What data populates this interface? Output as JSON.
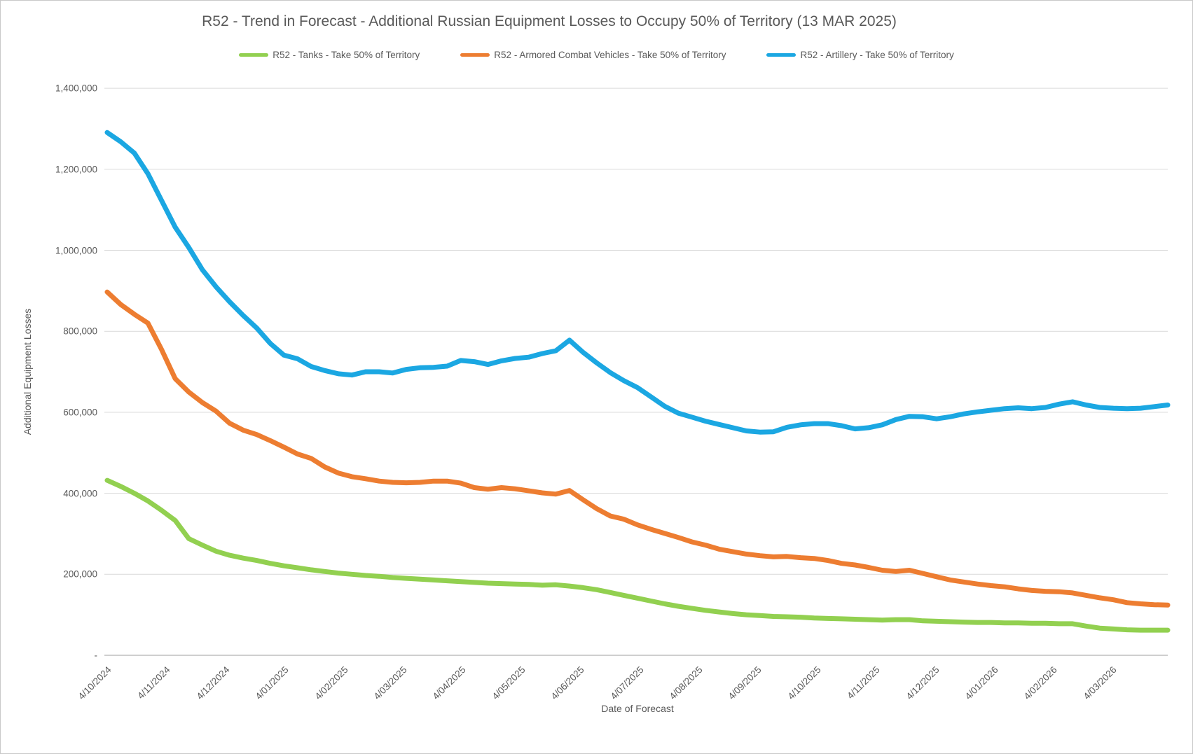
{
  "window": {
    "background": "#ffffff",
    "border_color": "#c9c9c9"
  },
  "title": "R52 - Trend in Forecast - Additional Russian Equipment Losses to Occupy 50% of Territory (13 MAR 2025)",
  "colors": {
    "tanks": "#92d050",
    "acv": "#ed7d31",
    "artillery": "#1ba7e2",
    "text": "#595959",
    "gridline": "#d9d9d9",
    "axis_line": "#bfbfbf"
  },
  "chart_data": {
    "type": "line",
    "title": "R52 - Trend in Forecast - Additional Russian Equipment Losses to Occupy 50% of Territory (13 MAR 2025)",
    "xlabel": "Date of Forecast",
    "ylabel": "Additional Equipment Losses",
    "ylim": [
      0,
      1400000
    ],
    "grid": "horizontal-only",
    "legend_position": "top",
    "x_tick_labels": [
      "4/10/2024",
      "4/11/2024",
      "4/12/2024",
      "4/01/2025",
      "4/02/2025",
      "4/03/2025",
      "4/04/2025",
      "4/05/2025",
      "4/06/2025",
      "4/07/2025",
      "4/08/2025",
      "4/09/2025",
      "4/10/2025",
      "4/11/2025",
      "4/12/2025",
      "4/01/2026",
      "4/02/2026",
      "4/03/2026"
    ],
    "x_note": "monthly tick labels; data sampled weekly (79 points), weeks_per_month 4.3485",
    "points_per_series": 79,
    "weeks_per_month": 4.3485,
    "y_ticks": [
      {
        "v": 1400000,
        "label": "1,400,000"
      },
      {
        "v": 1200000,
        "label": "1,200,000"
      },
      {
        "v": 1000000,
        "label": "1,000,000"
      },
      {
        "v": 800000,
        "label": "800,000"
      },
      {
        "v": 600000,
        "label": "600,000"
      },
      {
        "v": 400000,
        "label": "400,000"
      },
      {
        "v": 200000,
        "label": "200,000"
      },
      {
        "v": 0,
        "label": "-"
      }
    ],
    "series": [
      {
        "name": "R52 - Tanks - Take 50% of Territory",
        "color": "#92d050",
        "values": [
          432000,
          417000,
          400000,
          381000,
          358000,
          333000,
          288000,
          272000,
          257000,
          247000,
          240000,
          234000,
          227000,
          221000,
          216000,
          211000,
          207000,
          203000,
          200000,
          197000,
          195000,
          192000,
          190000,
          188000,
          186000,
          184000,
          182000,
          180000,
          178000,
          177000,
          176000,
          175000,
          173000,
          174000,
          171000,
          167000,
          162000,
          155000,
          148000,
          141000,
          134000,
          127000,
          121000,
          116000,
          111000,
          107000,
          103000,
          100000,
          98000,
          96000,
          95000,
          94000,
          92000,
          91000,
          90000,
          89000,
          88000,
          87000,
          88000,
          88000,
          85000,
          84000,
          83000,
          82000,
          81000,
          81000,
          80000,
          80000,
          79000,
          79000,
          78000,
          78000,
          72000,
          67000,
          65000,
          63000,
          62000,
          62000,
          62000
        ]
      },
      {
        "name": "R52 - Armored Combat Vehicles - Take 50% of Territory",
        "color": "#ed7d31",
        "values": [
          897000,
          866000,
          842000,
          820000,
          755000,
          683000,
          650000,
          624000,
          603000,
          573000,
          556000,
          545000,
          530000,
          514000,
          497000,
          486000,
          465000,
          450000,
          441000,
          436000,
          430000,
          427000,
          426000,
          427000,
          430000,
          430000,
          425000,
          414000,
          410000,
          414000,
          411000,
          406000,
          401000,
          398000,
          407000,
          384000,
          362000,
          344000,
          336000,
          322000,
          311000,
          301000,
          291000,
          280000,
          272000,
          262000,
          256000,
          250000,
          246000,
          243000,
          244000,
          241000,
          239000,
          234000,
          227000,
          223000,
          217000,
          210000,
          207000,
          210000,
          202000,
          194000,
          186000,
          181000,
          176000,
          172000,
          169000,
          164000,
          160000,
          158000,
          157000,
          154000,
          148000,
          142000,
          137000,
          130000,
          127000,
          125000,
          124000
        ]
      },
      {
        "name": "R52 - Artillery - Take 50% of Territory",
        "color": "#1ba7e2",
        "values": [
          1291000,
          1268000,
          1240000,
          1189000,
          1123000,
          1057000,
          1007000,
          952000,
          910000,
          873000,
          839000,
          808000,
          770000,
          741000,
          732000,
          713000,
          703000,
          695000,
          692000,
          700000,
          700000,
          697000,
          706000,
          710000,
          711000,
          714000,
          728000,
          725000,
          718000,
          727000,
          733000,
          736000,
          745000,
          752000,
          778000,
          748000,
          722000,
          698000,
          678000,
          661000,
          638000,
          615000,
          598000,
          588000,
          578000,
          570000,
          562000,
          554000,
          551000,
          552000,
          563000,
          569000,
          572000,
          572000,
          567000,
          559000,
          562000,
          569000,
          582000,
          590000,
          589000,
          584000,
          589000,
          596000,
          601000,
          605000,
          609000,
          611000,
          609000,
          612000,
          620000,
          626000,
          618000,
          612000,
          610000,
          609000,
          610000,
          614000,
          618000
        ]
      }
    ]
  }
}
